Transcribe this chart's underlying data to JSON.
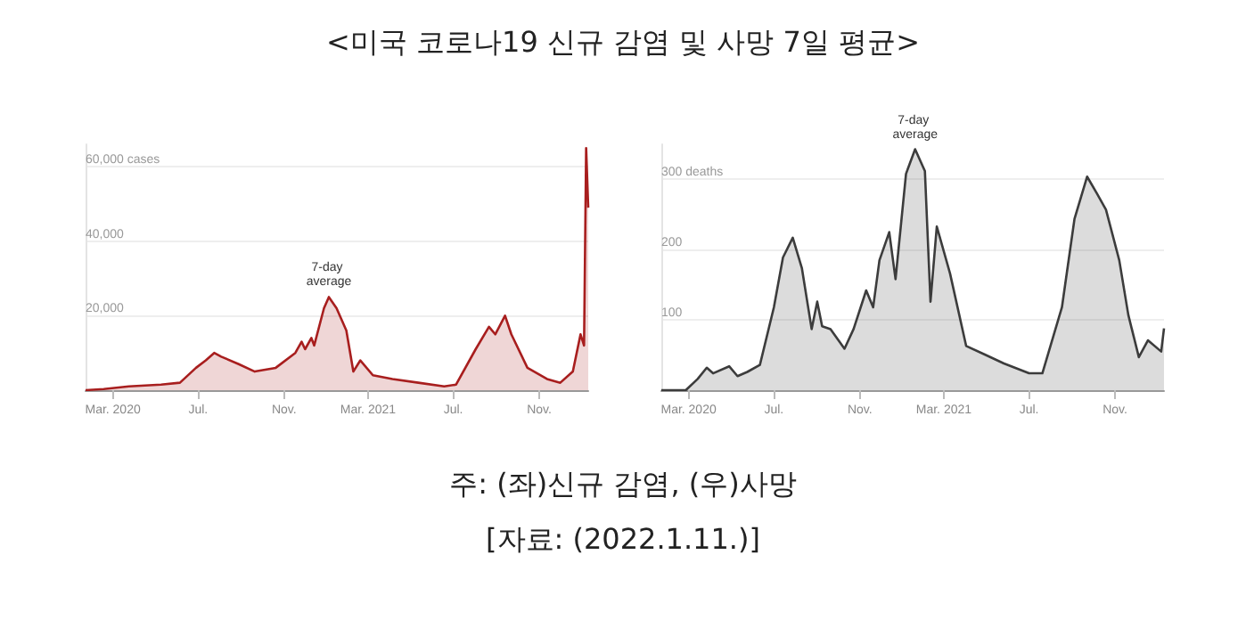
{
  "chart_data": [
    {
      "type": "area",
      "title": "<미국 코로나19 신규 감염 및 사망 7일 평균>",
      "x": [
        "2020-01-22",
        "2020-02-17",
        "2020-03-24",
        "2020-05-09",
        "2020-06-05",
        "2020-06-28",
        "2020-07-12",
        "2020-07-24",
        "2020-08-03",
        "2020-08-28",
        "2020-09-20",
        "2020-10-20",
        "2020-11-17",
        "2020-11-26",
        "2020-12-01",
        "2020-12-10",
        "2020-12-14",
        "2020-12-28",
        "2021-01-04",
        "2021-01-15",
        "2021-01-29",
        "2021-02-08",
        "2021-02-18",
        "2021-03-08",
        "2021-04-05",
        "2021-05-12",
        "2021-06-18",
        "2021-07-05",
        "2021-08-02",
        "2021-08-21",
        "2021-08-30",
        "2021-09-13",
        "2021-09-22",
        "2021-10-15",
        "2021-11-12",
        "2021-12-01",
        "2021-12-19",
        "2021-12-30",
        "2022-01-04",
        "2022-01-07",
        "2022-01-10"
      ],
      "series": [
        {
          "color": "#a81e1e",
          "values": [
            0,
            300,
            1000,
            1500,
            2000,
            6000,
            8000,
            10000,
            9000,
            7000,
            5000,
            6000,
            10000,
            13000,
            11000,
            14000,
            12000,
            22000,
            25000,
            22000,
            16000,
            5000,
            8000,
            4000,
            3000,
            2000,
            1000,
            1500,
            11000,
            17000,
            15000,
            20000,
            15000,
            6000,
            3000,
            2000,
            5000,
            15000,
            12000,
            65000,
            49000
          ]
        }
      ],
      "xlim": [
        "2020-01-22",
        "2022-01-10"
      ],
      "xticks": [
        {
          "value": "2020-03-01",
          "label": "Mar. 2020"
        },
        {
          "value": "2020-07-01",
          "label": "Jul."
        },
        {
          "value": "2020-11-01",
          "label": "Nov."
        },
        {
          "value": "2021-03-01",
          "label": "Mar. 2021"
        },
        {
          "value": "2021-07-01",
          "label": "Jul."
        },
        {
          "value": "2021-11-01",
          "label": "Nov."
        }
      ],
      "ylim": [
        0,
        66000
      ],
      "yticks": [
        {
          "value": 20000,
          "label": "20,000"
        },
        {
          "value": 40000,
          "label": "40,000"
        },
        {
          "value": 60000,
          "label": "60,000 cases"
        }
      ],
      "grid": "y",
      "annotations": [
        {
          "text": "7-day average",
          "x": "2021-01-04",
          "y": 25000
        },
        "주: (좌)신규 감염, (우)사망"
      ]
    },
    {
      "type": "area",
      "x": [
        "2020-01-22",
        "2020-02-26",
        "2020-03-14",
        "2020-03-27",
        "2020-04-05",
        "2020-04-28",
        "2020-05-10",
        "2020-05-24",
        "2020-06-11",
        "2020-07-01",
        "2020-07-14",
        "2020-07-28",
        "2020-08-10",
        "2020-08-24",
        "2020-09-01",
        "2020-09-08",
        "2020-09-20",
        "2020-10-10",
        "2020-10-23",
        "2020-11-10",
        "2020-11-20",
        "2020-11-29",
        "2020-12-13",
        "2020-12-22",
        "2021-01-06",
        "2021-01-19",
        "2021-02-02",
        "2021-02-10",
        "2021-02-19",
        "2021-03-10",
        "2021-04-02",
        "2021-04-28",
        "2021-05-26",
        "2021-07-01",
        "2021-07-20",
        "2021-08-17",
        "2021-09-04",
        "2021-09-22",
        "2021-10-06",
        "2021-10-19",
        "2021-11-07",
        "2021-11-20",
        "2021-12-05",
        "2021-12-18",
        "2022-01-06",
        "2022-01-10"
      ],
      "series": [
        {
          "color": "#3c3c3c",
          "values": [
            0,
            0,
            16,
            32,
            24,
            34,
            20,
            26,
            36,
            118,
            189,
            217,
            174,
            87,
            126,
            91,
            87,
            59,
            87,
            142,
            118,
            185,
            225,
            158,
            308,
            343,
            312,
            126,
            233,
            166,
            63,
            51,
            38,
            24,
            24,
            118,
            244,
            304,
            280,
            257,
            185,
            107,
            47,
            71,
            55,
            88
          ]
        }
      ],
      "xlim": [
        "2020-01-22",
        "2022-01-10"
      ],
      "xticks": [
        {
          "value": "2020-03-01",
          "label": "Mar. 2020"
        },
        {
          "value": "2020-07-01",
          "label": "Jul."
        },
        {
          "value": "2020-11-01",
          "label": "Nov."
        },
        {
          "value": "2021-03-01",
          "label": "Mar. 2021"
        },
        {
          "value": "2021-07-01",
          "label": "Jul."
        },
        {
          "value": "2021-11-01",
          "label": "Nov."
        }
      ],
      "ylim": [
        0,
        350
      ],
      "yticks": [
        {
          "value": 100,
          "label": "100"
        },
        {
          "value": 200,
          "label": "200"
        },
        {
          "value": 300,
          "label": "300 deaths"
        }
      ],
      "grid": "y",
      "annotations": [
        {
          "text": "7-day average",
          "x": "2021-01-19",
          "y": 343
        },
        "[자료: (2022.1.11.)]"
      ]
    }
  ]
}
